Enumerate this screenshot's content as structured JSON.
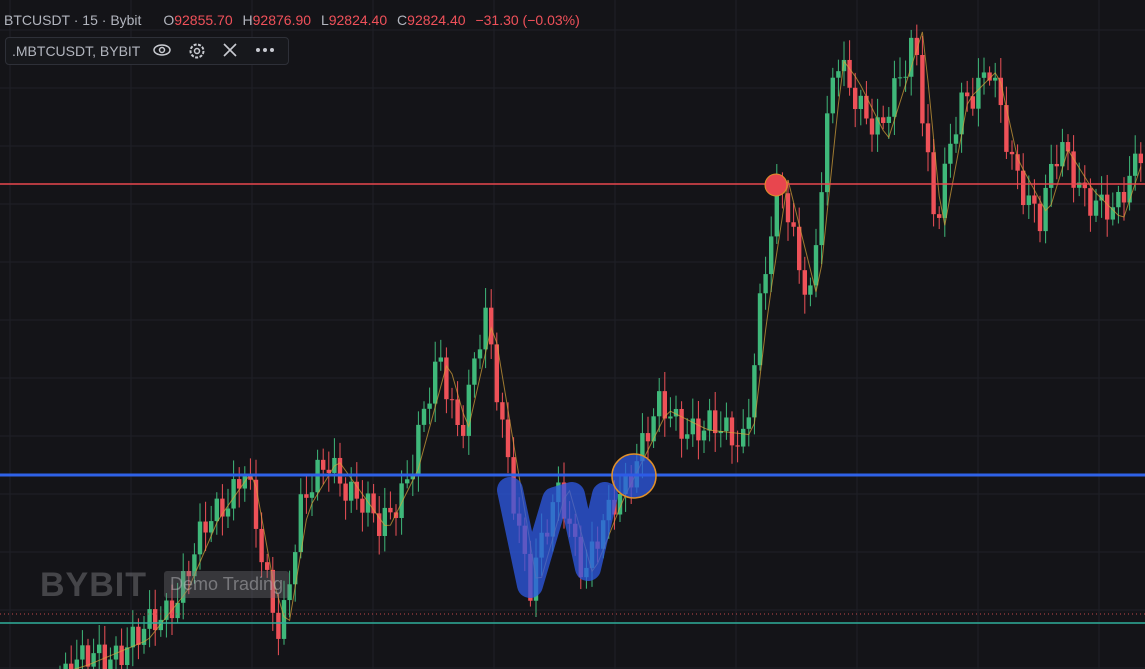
{
  "header": {
    "symbol": "BTCUSDT · 15 · Bybit",
    "ohlc": [
      {
        "key": "O",
        "value": "92855.70"
      },
      {
        "key": "H",
        "value": "92876.90"
      },
      {
        "key": "L",
        "value": "92824.40"
      },
      {
        "key": "C",
        "value": "92824.40"
      }
    ],
    "change": "−31.30 (−0.03%)"
  },
  "legend": {
    "label": ".MBTCUSDT, BYBIT"
  },
  "watermark": {
    "brand": "BYBIT",
    "mode": "Demo Trading"
  }
}
